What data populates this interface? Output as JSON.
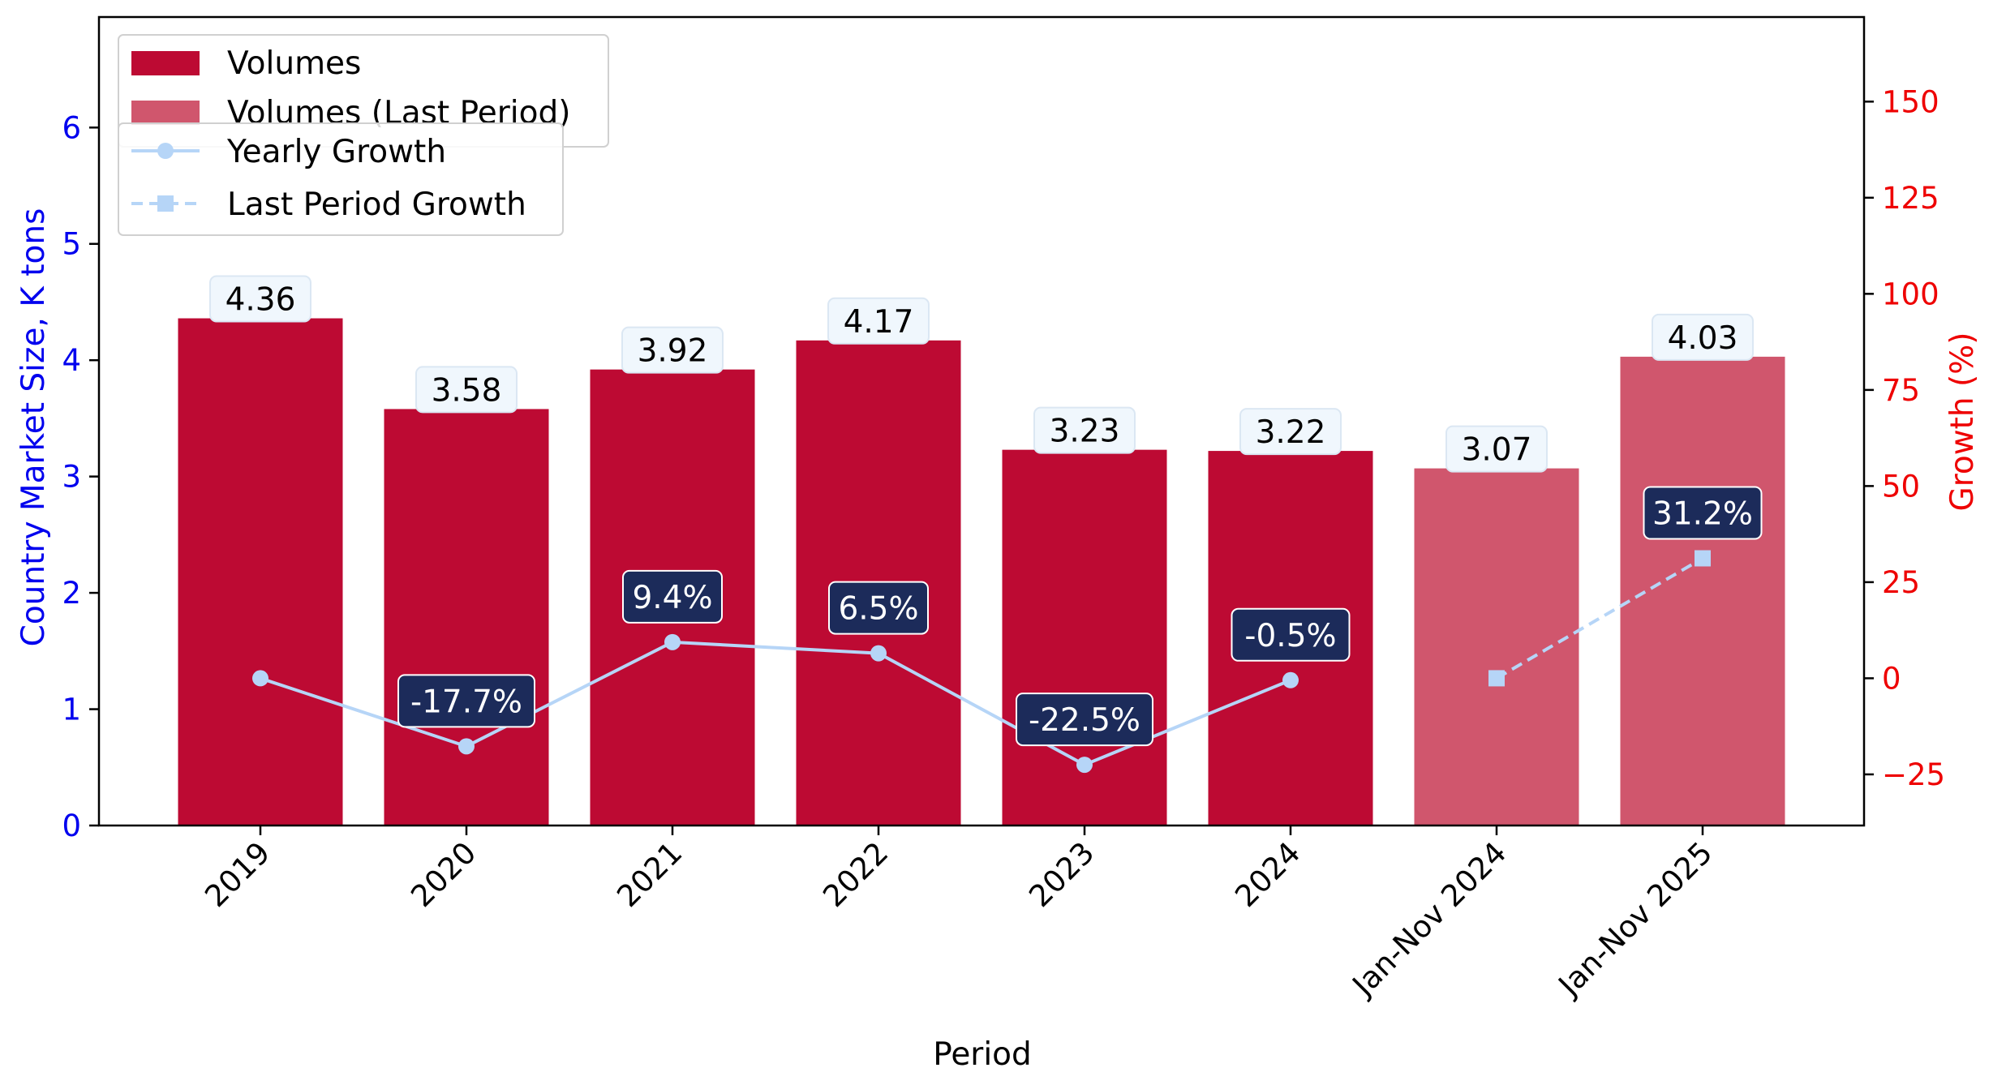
{
  "chart_data": {
    "type": "bar",
    "categories": [
      "2019",
      "2020",
      "2021",
      "2022",
      "2023",
      "2024",
      "Jan-Nov 2024",
      "Jan-Nov 2025"
    ],
    "series": [
      {
        "name": "Volumes",
        "kind": "bar",
        "axis": "left",
        "color": "#bd0a33",
        "values": [
          4.36,
          3.58,
          3.92,
          4.17,
          3.23,
          3.22,
          null,
          null
        ]
      },
      {
        "name": "Volumes (Last Period)",
        "kind": "bar",
        "axis": "left",
        "color": "#d0566d",
        "values": [
          null,
          null,
          null,
          null,
          null,
          null,
          3.07,
          4.03
        ]
      },
      {
        "name": "Yearly Growth",
        "kind": "line",
        "axis": "right",
        "color": "#b6d5f7",
        "marker": "circle",
        "values": [
          0,
          -17.7,
          9.4,
          6.5,
          -22.5,
          -0.5,
          null,
          null
        ]
      },
      {
        "name": "Last Period Growth",
        "kind": "line",
        "axis": "right",
        "color": "#b6d5f7",
        "marker": "square",
        "dashed": true,
        "values": [
          null,
          null,
          null,
          null,
          null,
          null,
          0,
          31.2
        ]
      }
    ],
    "bar_labels": [
      "4.36",
      "3.58",
      "3.92",
      "4.17",
      "3.23",
      "3.22",
      "3.07",
      "4.03"
    ],
    "growth_labels": [
      {
        "index": 1,
        "text": "-17.7%"
      },
      {
        "index": 2,
        "text": "9.4%"
      },
      {
        "index": 3,
        "text": "6.5%"
      },
      {
        "index": 4,
        "text": "-22.5%"
      },
      {
        "index": 5,
        "text": "-0.5%"
      },
      {
        "index": 7,
        "text": "31.2%"
      }
    ],
    "xlabel": "Period",
    "ylabel": "Country Market Size, K tons",
    "ylabel_right": "Growth (%)",
    "ylim": [
      0,
      6.95
    ],
    "ylim_right": [
      -38.3,
      172
    ],
    "yticks": [
      0,
      1,
      2,
      3,
      4,
      5,
      6
    ],
    "yticks_right": [
      -25,
      0,
      25,
      50,
      75,
      100,
      125,
      150
    ],
    "left_axis_color": "#0000ee",
    "right_axis_color": "#ee0000",
    "label_box_color": "#f0f7fd",
    "growth_box_color": "#1c2b5a",
    "grid": false,
    "legend_placement": "top-left"
  }
}
